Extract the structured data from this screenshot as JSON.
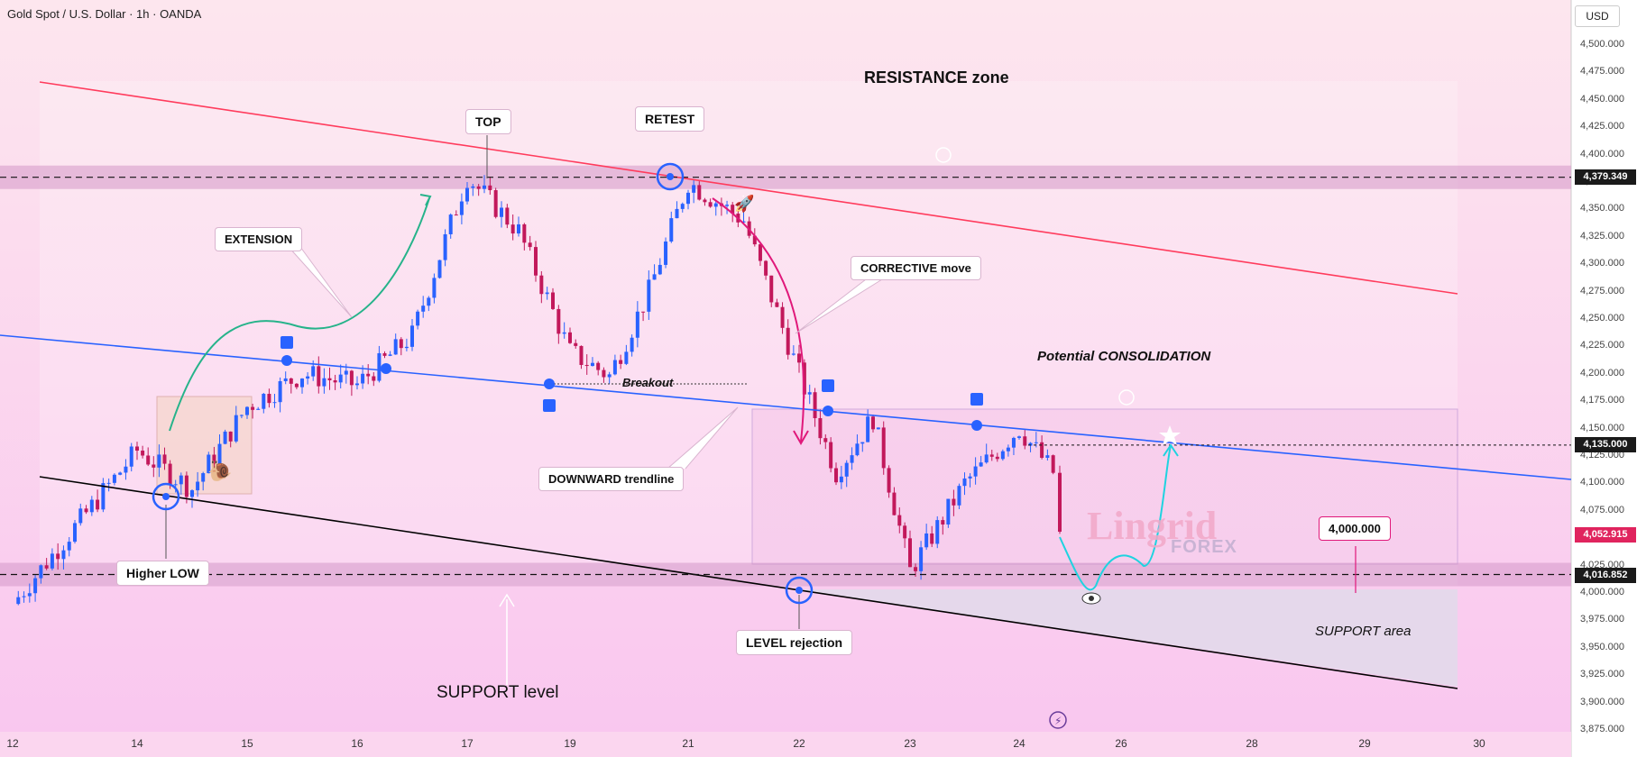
{
  "header": {
    "title": "Gold Spot / U.S. Dollar · 1h · OANDA",
    "currency": "USD"
  },
  "colors": {
    "bull": "#2962ff",
    "bear": "#c2185b",
    "resistance_line": "#ff3b5c",
    "blue_line": "#2962ff",
    "support_line": "#000000",
    "arrow_green": "#26b38a",
    "arrow_pink": "#e0187a",
    "arrow_cyan": "#1fd3e0"
  },
  "labels": {
    "resistance_zone": "RESISTANCE zone",
    "top": "TOP",
    "retest": "RETEST",
    "extension": "EXTENSION",
    "corrective": "CORRECTIVE move",
    "potential": "Potential CONSOLIDATION",
    "breakout": "Breakout",
    "downward": "DOWNWARD trendline",
    "higher_low": "Higher LOW",
    "level_rejection": "LEVEL rejection",
    "support_level": "SUPPORT level",
    "support_area": "SUPPORT area",
    "target": "4,000.000"
  },
  "watermark": {
    "main": "Lingrid",
    "sub": "FOREX"
  },
  "price_tags": {
    "resistance": "4,379.349",
    "target_line": "4,135.000",
    "current": "4,052.915",
    "support": "4,016.852"
  },
  "chart_data": {
    "type": "candlestick",
    "symbol": "XAUUSD",
    "timeframe": "1h",
    "ylim": [
      3875,
      4525
    ],
    "y_ticks": [
      "4,500.000",
      "4,475.000",
      "4,450.000",
      "4,425.000",
      "4,400.000",
      "4,375.000",
      "4,350.000",
      "4,325.000",
      "4,300.000",
      "4,275.000",
      "4,250.000",
      "4,225.000",
      "4,200.000",
      "4,175.000",
      "4,150.000",
      "4,125.000",
      "4,100.000",
      "4,075.000",
      "4,050.000",
      "4,025.000",
      "4,000.000",
      "3,975.000",
      "3,950.000",
      "3,925.000",
      "3,900.000",
      "3,875.000"
    ],
    "x_ticks": [
      "12",
      "14",
      "15",
      "16",
      "17",
      "19",
      "21",
      "22",
      "23",
      "24",
      "26",
      "28",
      "29",
      "30"
    ],
    "levels": {
      "resistance": 4379.349,
      "support": 4016.852,
      "target": 4135.0,
      "current": 4052.915,
      "target_label": 4000.0
    },
    "price_path": [
      {
        "x": "12",
        "y": 3990
      },
      {
        "x": "14",
        "y": 4130
      },
      {
        "x": "14",
        "y": 4095
      },
      {
        "x": "15",
        "y": 4170
      },
      {
        "x": "15",
        "y": 4200
      },
      {
        "x": "16",
        "y": 4190
      },
      {
        "x": "16",
        "y": 4235
      },
      {
        "x": "17",
        "y": 4380
      },
      {
        "x": "17",
        "y": 4330
      },
      {
        "x": "19",
        "y": 4220
      },
      {
        "x": "19",
        "y": 4198
      },
      {
        "x": "19",
        "y": 4275
      },
      {
        "x": "21",
        "y": 4375
      },
      {
        "x": "21",
        "y": 4340
      },
      {
        "x": "22",
        "y": 4200
      },
      {
        "x": "22",
        "y": 4110
      },
      {
        "x": "22",
        "y": 4160
      },
      {
        "x": "23",
        "y": 4020
      },
      {
        "x": "23",
        "y": 4100
      },
      {
        "x": "24",
        "y": 4150
      },
      {
        "x": "24",
        "y": 4110
      },
      {
        "x": "24",
        "y": 4052.915
      }
    ]
  }
}
